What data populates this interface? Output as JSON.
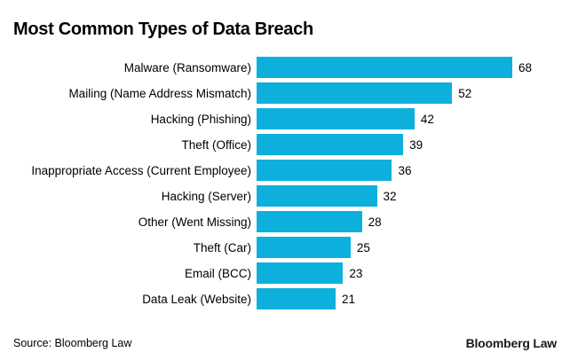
{
  "title": "Most Common Types of Data Breach",
  "chart_data": {
    "type": "bar",
    "orientation": "horizontal",
    "title": "Most Common Types of Data Breach",
    "categories": [
      "Malware (Ransomware)",
      "Mailing (Name Address Mismatch)",
      "Hacking (Phishing)",
      "Theft (Office)",
      "Inappropriate Access (Current Employee)",
      "Hacking (Server)",
      "Other (Went Missing)",
      "Theft (Car)",
      "Email (BCC)",
      "Data Leak (Website)"
    ],
    "values": [
      68,
      52,
      42,
      39,
      36,
      32,
      28,
      25,
      23,
      21
    ],
    "xlabel": "",
    "ylabel": "",
    "xlim": [
      0,
      68
    ],
    "grid": false,
    "legend": false,
    "value_labels": true,
    "bar_color": "#0db0dc",
    "text_color": "#000000",
    "background_color": "#ffffff"
  },
  "footer": {
    "source": "Source: Bloomberg Law",
    "brand": "Bloomberg Law"
  }
}
